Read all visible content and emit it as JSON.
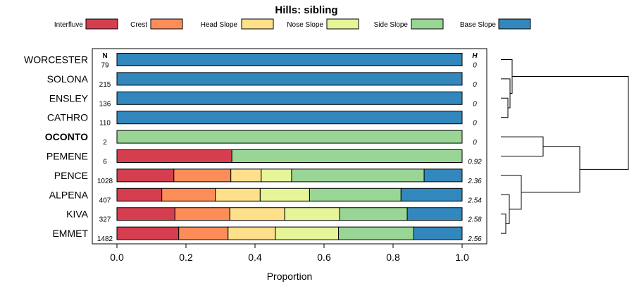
{
  "chart_data": {
    "type": "bar",
    "stacked": true,
    "orientation": "horizontal",
    "title": "Hills: sibling",
    "xlabel": "Proportion",
    "ylabel": "",
    "xlim": [
      0,
      1
    ],
    "xticks": [
      "0.0",
      "0.2",
      "0.4",
      "0.6",
      "0.8",
      "1.0"
    ],
    "n_header": "N",
    "h_header": "H",
    "legend_position": "top",
    "series": [
      {
        "name": "Interfluve",
        "color": "#d53e4f"
      },
      {
        "name": "Crest",
        "color": "#fc8d59"
      },
      {
        "name": "Head Slope",
        "color": "#fee08b"
      },
      {
        "name": "Nose Slope",
        "color": "#e6f598"
      },
      {
        "name": "Side Slope",
        "color": "#99d594"
      },
      {
        "name": "Base Slope",
        "color": "#3288bd"
      }
    ],
    "rows": [
      {
        "label": "WORCESTER",
        "n": "79",
        "h": "0",
        "bold": false,
        "values": [
          0,
          0,
          0,
          0,
          0,
          1.0
        ]
      },
      {
        "label": "SOLONA",
        "n": "215",
        "h": "0",
        "bold": false,
        "values": [
          0,
          0,
          0,
          0,
          0,
          1.0
        ]
      },
      {
        "label": "ENSLEY",
        "n": "136",
        "h": "0",
        "bold": false,
        "values": [
          0,
          0,
          0,
          0,
          0,
          1.0
        ]
      },
      {
        "label": "CATHRO",
        "n": "110",
        "h": "0",
        "bold": false,
        "values": [
          0,
          0,
          0,
          0,
          0,
          1.0
        ]
      },
      {
        "label": "OCONTO",
        "n": "2",
        "h": "0",
        "bold": true,
        "values": [
          0,
          0,
          0,
          0,
          1.0,
          0
        ]
      },
      {
        "label": "PEMENE",
        "n": "6",
        "h": "0.92",
        "bold": false,
        "values": [
          0.333,
          0,
          0,
          0,
          0.667,
          0
        ]
      },
      {
        "label": "PENCE",
        "n": "1028",
        "h": "2.36",
        "bold": false,
        "values": [
          0.165,
          0.165,
          0.088,
          0.088,
          0.384,
          0.11
        ]
      },
      {
        "label": "ALPENA",
        "n": "407",
        "h": "2.54",
        "bold": false,
        "values": [
          0.13,
          0.155,
          0.13,
          0.143,
          0.265,
          0.177
        ]
      },
      {
        "label": "KIVA",
        "n": "327",
        "h": "2.58",
        "bold": false,
        "values": [
          0.168,
          0.159,
          0.159,
          0.159,
          0.196,
          0.159
        ]
      },
      {
        "label": "EMMET",
        "n": "1482",
        "h": "2.56",
        "bold": false,
        "values": [
          0.179,
          0.143,
          0.137,
          0.183,
          0.218,
          0.14
        ]
      }
    ],
    "dendrogram": "hierarchical clustering of rows shown at right"
  }
}
